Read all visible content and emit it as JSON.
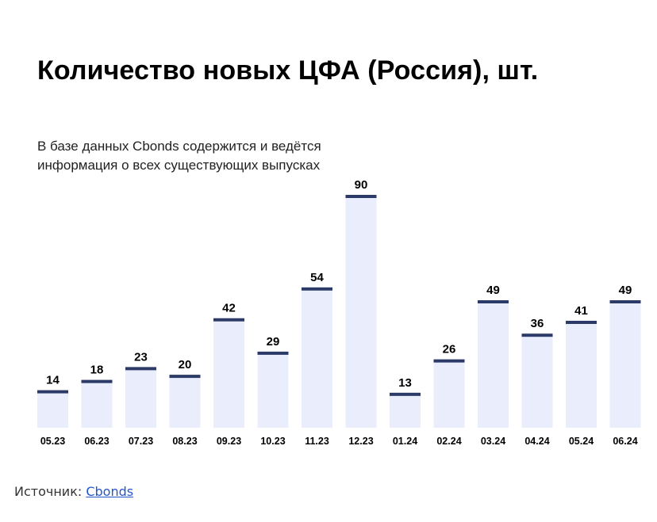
{
  "title": "Количество новых ЦФА (Россия), шт.",
  "subtitle": "В базе данных Cbonds содержится и ведётся информация о всех существующих выпусках",
  "source": {
    "label": "Источник:",
    "link_text": "Cbonds"
  },
  "colors": {
    "bar_fill": "#eaeefc",
    "bar_cap": "#2b3a66",
    "label": "#000000"
  },
  "chart_data": {
    "type": "bar",
    "title": "Количество новых ЦФА (Россия), шт.",
    "subtitle": "В базе данных Cbonds содержится и ведётся информация о всех существующих выпусках",
    "categories": [
      "05.23",
      "06.23",
      "07.23",
      "08.23",
      "09.23",
      "10.23",
      "11.23",
      "12.23",
      "01.24",
      "02.24",
      "03.24",
      "04.24",
      "05.24",
      "06.24"
    ],
    "values": [
      14,
      18,
      23,
      20,
      42,
      29,
      54,
      90,
      13,
      26,
      49,
      36,
      41,
      49
    ],
    "ylim": [
      0,
      90
    ],
    "grid": false,
    "legend": "none",
    "data_labels": true
  }
}
